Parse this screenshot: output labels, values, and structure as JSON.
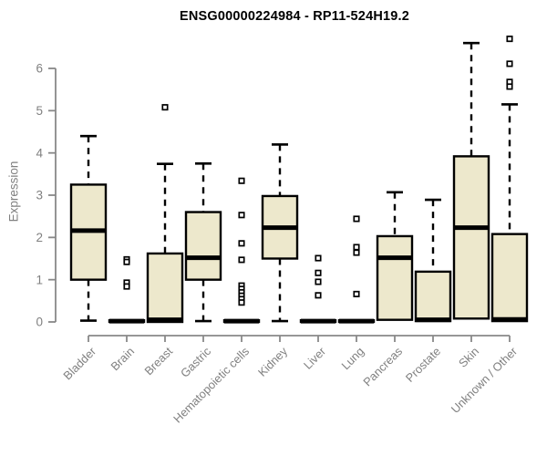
{
  "chart_data": {
    "type": "boxplot",
    "title": "ENSG00000224984 - RP11-524H19.2",
    "xlabel": "",
    "ylabel": "Expression",
    "ylim": [
      -0.32,
      6.78
    ],
    "yticks": [
      0,
      1,
      2,
      3,
      4,
      5,
      6
    ],
    "grid": false,
    "legend": "none",
    "categories": [
      "Bladder",
      "Brain",
      "Breast",
      "Gastric",
      "Hematopoietic cells",
      "Kidney",
      "Liver",
      "Lung",
      "Pancreas",
      "Prostate",
      "Skin",
      "Unknown / Other"
    ],
    "series": [
      {
        "name": "Bladder",
        "min": 0.03,
        "q1": 1.0,
        "median": 2.16,
        "q3": 3.25,
        "max": 4.4,
        "outliers": []
      },
      {
        "name": "Brain",
        "min": 0.0,
        "q1": 0.0,
        "median": 0.02,
        "q3": 0.04,
        "max": 0.04,
        "outliers": [
          1.48,
          1.42,
          0.93,
          0.84
        ]
      },
      {
        "name": "Breast",
        "min": 0.0,
        "q1": 0.0,
        "median": 0.05,
        "q3": 1.62,
        "max": 3.74,
        "outliers": [
          5.08
        ]
      },
      {
        "name": "Gastric",
        "min": 0.02,
        "q1": 1.0,
        "median": 1.52,
        "q3": 2.6,
        "max": 3.75,
        "outliers": []
      },
      {
        "name": "Hematopoietic cells",
        "min": 0.0,
        "q1": 0.0,
        "median": 0.02,
        "q3": 0.04,
        "max": 0.04,
        "outliers": [
          3.34,
          2.53,
          1.86,
          1.47,
          0.86,
          0.78,
          0.7,
          0.62,
          0.54,
          0.46
        ]
      },
      {
        "name": "Kidney",
        "min": 0.02,
        "q1": 1.5,
        "median": 2.23,
        "q3": 2.98,
        "max": 4.2,
        "outliers": []
      },
      {
        "name": "Liver",
        "min": 0.0,
        "q1": 0.0,
        "median": 0.02,
        "q3": 0.04,
        "max": 0.04,
        "outliers": [
          1.51,
          1.16,
          0.95,
          0.63
        ]
      },
      {
        "name": "Lung",
        "min": 0.0,
        "q1": 0.0,
        "median": 0.02,
        "q3": 0.04,
        "max": 0.04,
        "outliers": [
          2.44,
          1.77,
          1.64,
          0.66
        ]
      },
      {
        "name": "Pancreas",
        "min": 0.02,
        "q1": 0.05,
        "median": 1.52,
        "q3": 2.03,
        "max": 3.07,
        "outliers": []
      },
      {
        "name": "Prostate",
        "min": 0.0,
        "q1": 0.02,
        "median": 0.05,
        "q3": 1.19,
        "max": 2.89,
        "outliers": []
      },
      {
        "name": "Skin",
        "min": 0.05,
        "q1": 0.08,
        "median": 2.23,
        "q3": 3.92,
        "max": 6.6,
        "outliers": []
      },
      {
        "name": "Unknown / Other",
        "min": 0.0,
        "q1": 0.02,
        "median": 0.06,
        "q3": 2.08,
        "max": 5.15,
        "outliers": [
          6.7,
          6.11,
          5.68,
          5.57
        ]
      }
    ]
  },
  "colors": {
    "background": "#FFFFFF",
    "box_fill": "#EDE8CC",
    "box_stroke": "#000000",
    "median": "#000000",
    "whisker": "#000000",
    "outlier_stroke": "#000000",
    "outlier_fill": "#FFFFFF",
    "axis_line": "#888888",
    "tick_label": "#808080",
    "title": "#000000"
  }
}
